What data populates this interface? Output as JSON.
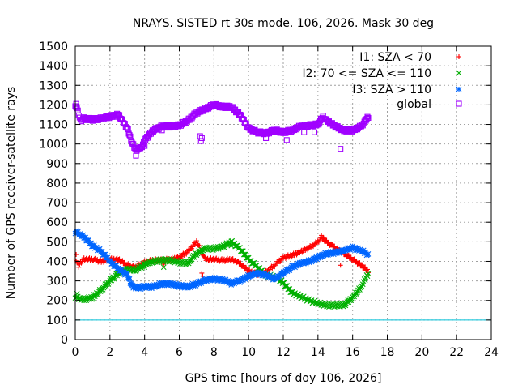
{
  "chart_data": {
    "type": "scatter",
    "title": "NRAYS. SISTED rt 30s mode. 106, 2026. Mask 30 deg",
    "xlabel": "GPS time [hours of doy 106, 2026]",
    "ylabel": "Number of GPS receiver-satellite rays",
    "xlim": [
      0,
      24
    ],
    "ylim": [
      0,
      1500
    ],
    "xticks": [
      0,
      2,
      4,
      6,
      8,
      10,
      12,
      14,
      16,
      18,
      20,
      22,
      24
    ],
    "yticks": [
      0,
      100,
      200,
      300,
      400,
      500,
      600,
      700,
      800,
      900,
      1000,
      1100,
      1200,
      1300,
      1400,
      1500
    ],
    "grid": true,
    "legend_position": "top-right",
    "threshold_line": {
      "y": 100,
      "color": "#00c0d8"
    },
    "series": [
      {
        "name": "I1: SZA < 70",
        "marker": "plus",
        "color": "#ff0000",
        "points": [
          [
            0.0,
            420
          ],
          [
            0.1,
            390
          ],
          [
            0.2,
            375
          ],
          [
            0.3,
            395
          ],
          [
            0.5,
            410
          ],
          [
            1.0,
            410
          ],
          [
            1.5,
            400
          ],
          [
            2.0,
            410
          ],
          [
            2.5,
            410
          ],
          [
            3.0,
            380
          ],
          [
            3.5,
            370
          ],
          [
            4.0,
            395
          ],
          [
            4.5,
            405
          ],
          [
            5.0,
            405
          ],
          [
            5.5,
            410
          ],
          [
            6.0,
            420
          ],
          [
            6.5,
            450
          ],
          [
            7.0,
            500
          ],
          [
            7.3,
            450
          ],
          [
            7.5,
            410
          ],
          [
            8.0,
            410
          ],
          [
            8.5,
            405
          ],
          [
            9.0,
            410
          ],
          [
            9.5,
            390
          ],
          [
            10.0,
            350
          ],
          [
            10.5,
            335
          ],
          [
            11.0,
            345
          ],
          [
            11.5,
            380
          ],
          [
            12.0,
            420
          ],
          [
            12.5,
            430
          ],
          [
            13.0,
            450
          ],
          [
            13.5,
            470
          ],
          [
            14.0,
            500
          ],
          [
            14.2,
            525
          ],
          [
            14.5,
            500
          ],
          [
            15.0,
            470
          ],
          [
            15.5,
            440
          ],
          [
            16.0,
            410
          ],
          [
            16.5,
            380
          ],
          [
            16.9,
            350
          ]
        ],
        "outliers": [
          [
            0.05,
            435
          ],
          [
            3.3,
            355
          ],
          [
            5.1,
            385
          ],
          [
            7.3,
            340
          ],
          [
            7.35,
            325
          ],
          [
            15.3,
            380
          ]
        ]
      },
      {
        "name": "I2: 70 <= SZA <= 110",
        "marker": "cross",
        "color": "#00b000",
        "points": [
          [
            0.0,
            220
          ],
          [
            0.2,
            210
          ],
          [
            0.5,
            205
          ],
          [
            1.0,
            215
          ],
          [
            1.5,
            255
          ],
          [
            2.0,
            300
          ],
          [
            2.5,
            340
          ],
          [
            3.0,
            360
          ],
          [
            3.5,
            355
          ],
          [
            4.0,
            385
          ],
          [
            4.5,
            400
          ],
          [
            5.0,
            405
          ],
          [
            5.5,
            405
          ],
          [
            6.0,
            395
          ],
          [
            6.5,
            390
          ],
          [
            7.0,
            440
          ],
          [
            7.5,
            465
          ],
          [
            8.0,
            465
          ],
          [
            8.5,
            475
          ],
          [
            9.0,
            500
          ],
          [
            9.5,
            465
          ],
          [
            10.0,
            410
          ],
          [
            10.5,
            370
          ],
          [
            11.0,
            330
          ],
          [
            11.5,
            320
          ],
          [
            12.0,
            290
          ],
          [
            12.5,
            240
          ],
          [
            13.0,
            220
          ],
          [
            13.5,
            200
          ],
          [
            14.0,
            185
          ],
          [
            14.5,
            175
          ],
          [
            15.0,
            175
          ],
          [
            15.5,
            175
          ],
          [
            16.0,
            215
          ],
          [
            16.5,
            270
          ],
          [
            16.9,
            340
          ]
        ],
        "outliers": [
          [
            0.1,
            235
          ],
          [
            4.0,
            370
          ],
          [
            5.1,
            370
          ],
          [
            9.0,
            480
          ]
        ]
      },
      {
        "name": "I3: SZA > 110",
        "marker": "star",
        "color": "#0066ff",
        "points": [
          [
            0.0,
            550
          ],
          [
            0.2,
            540
          ],
          [
            0.5,
            525
          ],
          [
            1.0,
            480
          ],
          [
            1.5,
            450
          ],
          [
            2.0,
            400
          ],
          [
            2.5,
            360
          ],
          [
            3.0,
            330
          ],
          [
            3.3,
            270
          ],
          [
            3.7,
            265
          ],
          [
            4.0,
            270
          ],
          [
            4.5,
            270
          ],
          [
            5.0,
            285
          ],
          [
            5.5,
            285
          ],
          [
            6.0,
            275
          ],
          [
            6.5,
            270
          ],
          [
            7.0,
            285
          ],
          [
            7.5,
            305
          ],
          [
            8.0,
            310
          ],
          [
            8.5,
            305
          ],
          [
            9.0,
            290
          ],
          [
            9.5,
            300
          ],
          [
            10.0,
            325
          ],
          [
            10.5,
            340
          ],
          [
            11.0,
            330
          ],
          [
            11.5,
            310
          ],
          [
            12.0,
            340
          ],
          [
            12.5,
            370
          ],
          [
            13.0,
            390
          ],
          [
            13.5,
            400
          ],
          [
            14.0,
            420
          ],
          [
            14.5,
            440
          ],
          [
            15.0,
            445
          ],
          [
            15.5,
            455
          ],
          [
            16.0,
            470
          ],
          [
            16.5,
            455
          ],
          [
            16.9,
            435
          ]
        ],
        "outliers": [
          [
            0.05,
            555
          ],
          [
            9.0,
            280
          ]
        ]
      },
      {
        "name": "global",
        "marker": "square",
        "color": "#a000ff",
        "points": [
          [
            0.0,
            1200
          ],
          [
            0.1,
            1180
          ],
          [
            0.3,
            1120
          ],
          [
            0.5,
            1130
          ],
          [
            1.0,
            1125
          ],
          [
            1.5,
            1130
          ],
          [
            2.0,
            1140
          ],
          [
            2.5,
            1150
          ],
          [
            3.0,
            1080
          ],
          [
            3.3,
            1000
          ],
          [
            3.5,
            970
          ],
          [
            3.8,
            980
          ],
          [
            4.0,
            1020
          ],
          [
            4.5,
            1070
          ],
          [
            5.0,
            1090
          ],
          [
            5.5,
            1090
          ],
          [
            6.0,
            1095
          ],
          [
            6.5,
            1120
          ],
          [
            7.0,
            1160
          ],
          [
            7.5,
            1180
          ],
          [
            8.0,
            1200
          ],
          [
            8.5,
            1190
          ],
          [
            9.0,
            1190
          ],
          [
            9.5,
            1150
          ],
          [
            10.0,
            1080
          ],
          [
            10.5,
            1060
          ],
          [
            11.0,
            1055
          ],
          [
            11.5,
            1070
          ],
          [
            12.0,
            1060
          ],
          [
            12.5,
            1070
          ],
          [
            13.0,
            1090
          ],
          [
            13.5,
            1095
          ],
          [
            14.0,
            1100
          ],
          [
            14.3,
            1140
          ],
          [
            14.5,
            1120
          ],
          [
            15.0,
            1090
          ],
          [
            15.5,
            1070
          ],
          [
            16.0,
            1070
          ],
          [
            16.5,
            1090
          ],
          [
            16.9,
            1140
          ]
        ],
        "outliers": [
          [
            0.05,
            1205
          ],
          [
            3.5,
            940
          ],
          [
            4.0,
            990
          ],
          [
            5.0,
            1070
          ],
          [
            7.2,
            1040
          ],
          [
            7.25,
            1015
          ],
          [
            7.3,
            1030
          ],
          [
            11.0,
            1030
          ],
          [
            12.2,
            1020
          ],
          [
            13.2,
            1060
          ],
          [
            13.8,
            1060
          ],
          [
            15.3,
            975
          ]
        ]
      }
    ]
  }
}
